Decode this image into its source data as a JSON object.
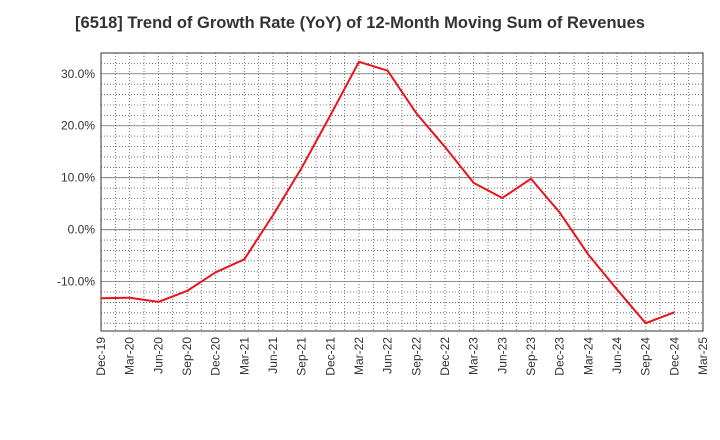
{
  "chart_data": {
    "type": "line",
    "title": "[6518]  Trend of Growth Rate (YoY) of 12-Month Moving Sum of Revenues",
    "xlabel": "",
    "ylabel": "",
    "categories": [
      "Dec-19",
      "Mar-20",
      "Jun-20",
      "Sep-20",
      "Dec-20",
      "Mar-21",
      "Jun-21",
      "Sep-21",
      "Dec-21",
      "Mar-22",
      "Jun-22",
      "Sep-22",
      "Dec-22",
      "Mar-23",
      "Jun-23",
      "Sep-23",
      "Dec-23",
      "Mar-24",
      "Jun-24",
      "Sep-24",
      "Dec-24",
      "Mar-25"
    ],
    "y_ticks": [
      30,
      20,
      10,
      0,
      -10
    ],
    "y_tick_labels": [
      "30.0%",
      "20.0%",
      "10.0%",
      "0.0%",
      "-10.0%"
    ],
    "ylim": [
      -19.5,
      34
    ],
    "grid": true,
    "series": [
      {
        "color": "#e8141b",
        "values": [
          -13.2,
          -13.1,
          -13.9,
          -11.8,
          -8.2,
          -5.7,
          2.8,
          11.9,
          22.0,
          32.3,
          30.6,
          22.4,
          15.9,
          9.0,
          6.1,
          9.8,
          3.3,
          -4.8,
          -11.5,
          -18.0,
          -15.9,
          null
        ]
      }
    ]
  }
}
